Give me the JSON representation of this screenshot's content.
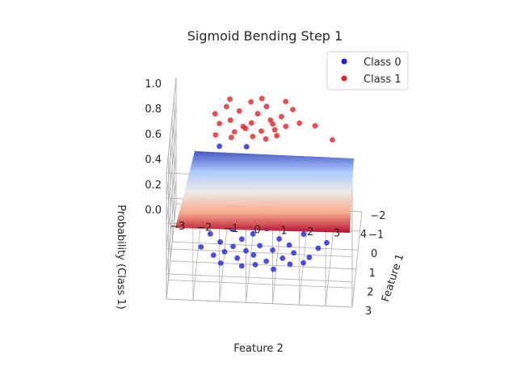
{
  "chart_data": {
    "type": "scatter",
    "title": "Sigmoid Bending Step 1",
    "xlabel": "Feature 2",
    "ylabel": "Feature 1",
    "zlabel": "Probability (Class 1)",
    "x_ticks": [
      "−3",
      "−2",
      "−1",
      "0",
      "1",
      "2",
      "3",
      "4"
    ],
    "y_ticks": [
      "−2",
      "−1",
      "0",
      "1",
      "2",
      "3"
    ],
    "z_ticks": [
      "0.0",
      "0.2",
      "0.4",
      "0.6",
      "0.8",
      "1.0"
    ],
    "xlim": [
      -3,
      4
    ],
    "ylim": [
      -2,
      3
    ],
    "zlim": [
      0,
      1
    ],
    "legend_position": "top-right",
    "surface": {
      "colormap": "coolwarm",
      "z_range": [
        0,
        1
      ]
    },
    "series": [
      {
        "name": "Class 0",
        "color": "#1f1fe6",
        "points": [
          [
            -1.9,
            0.2,
            0
          ],
          [
            -1.6,
            -0.5,
            0
          ],
          [
            -1.4,
            0.6,
            0
          ],
          [
            -1.2,
            -0.1,
            0
          ],
          [
            -1.0,
            0.4,
            0
          ],
          [
            -0.8,
            -0.8,
            0
          ],
          [
            -0.7,
            0.1,
            0
          ],
          [
            -0.5,
            0.7,
            0
          ],
          [
            -0.4,
            -0.3,
            0
          ],
          [
            -0.2,
            0.3,
            0
          ],
          [
            0.0,
            -0.6,
            0
          ],
          [
            0.1,
            0.5,
            0
          ],
          [
            0.3,
            0.0,
            0
          ],
          [
            0.5,
            -0.9,
            0
          ],
          [
            0.6,
            0.8,
            0
          ],
          [
            0.8,
            0.2,
            0
          ],
          [
            1.0,
            -0.4,
            0
          ],
          [
            1.2,
            0.6,
            0
          ],
          [
            1.4,
            -0.1,
            0
          ],
          [
            1.6,
            0.3,
            0
          ],
          [
            1.9,
            -0.7,
            0
          ],
          [
            2.2,
            0.5,
            0
          ],
          [
            2.5,
            0.0,
            0
          ],
          [
            2.8,
            -0.3,
            0
          ],
          [
            0.2,
            1.0,
            0
          ],
          [
            -0.3,
            1.1,
            0
          ],
          [
            0.9,
            1.2,
            0
          ],
          [
            -1.1,
            1.0,
            0
          ],
          [
            1.5,
            0.9,
            0
          ],
          [
            2.0,
            0.8,
            0
          ],
          [
            -1.2,
            0.3,
            0.82
          ],
          [
            -0.2,
            0.0,
            0.78
          ]
        ]
      },
      {
        "name": "Class 1",
        "color": "#e61f1f",
        "points": [
          [
            -1.4,
            -0.2,
            1
          ],
          [
            -1.2,
            0.3,
            1
          ],
          [
            -1.0,
            -0.6,
            1
          ],
          [
            -0.8,
            0.1,
            1
          ],
          [
            -0.6,
            0.7,
            1
          ],
          [
            -0.5,
            -0.4,
            1
          ],
          [
            -0.3,
            0.4,
            1
          ],
          [
            -0.1,
            -0.9,
            1
          ],
          [
            0.0,
            0.2,
            1
          ],
          [
            0.2,
            -0.3,
            1
          ],
          [
            0.4,
            0.6,
            1
          ],
          [
            0.5,
            -0.7,
            1
          ],
          [
            0.7,
            0.0,
            1
          ],
          [
            0.9,
            0.5,
            1
          ],
          [
            1.1,
            -0.2,
            1
          ],
          [
            1.3,
            0.3,
            1
          ],
          [
            1.5,
            -0.6,
            1
          ],
          [
            1.8,
            0.1,
            1
          ],
          [
            2.4,
            0.2,
            1
          ],
          [
            3.1,
            0.9,
            1
          ],
          [
            -1.3,
            0.9,
            1
          ],
          [
            -0.7,
            1.0,
            1
          ],
          [
            0.1,
            0.9,
            1
          ],
          [
            0.6,
            1.0,
            1
          ],
          [
            1.0,
            0.8,
            1
          ],
          [
            -0.9,
            -1.0,
            1
          ],
          [
            0.3,
            -1.1,
            1
          ],
          [
            1.2,
            -1.0,
            1
          ],
          [
            0.8,
            0.2,
            1
          ],
          [
            -0.2,
            0.5,
            1
          ]
        ]
      }
    ]
  }
}
